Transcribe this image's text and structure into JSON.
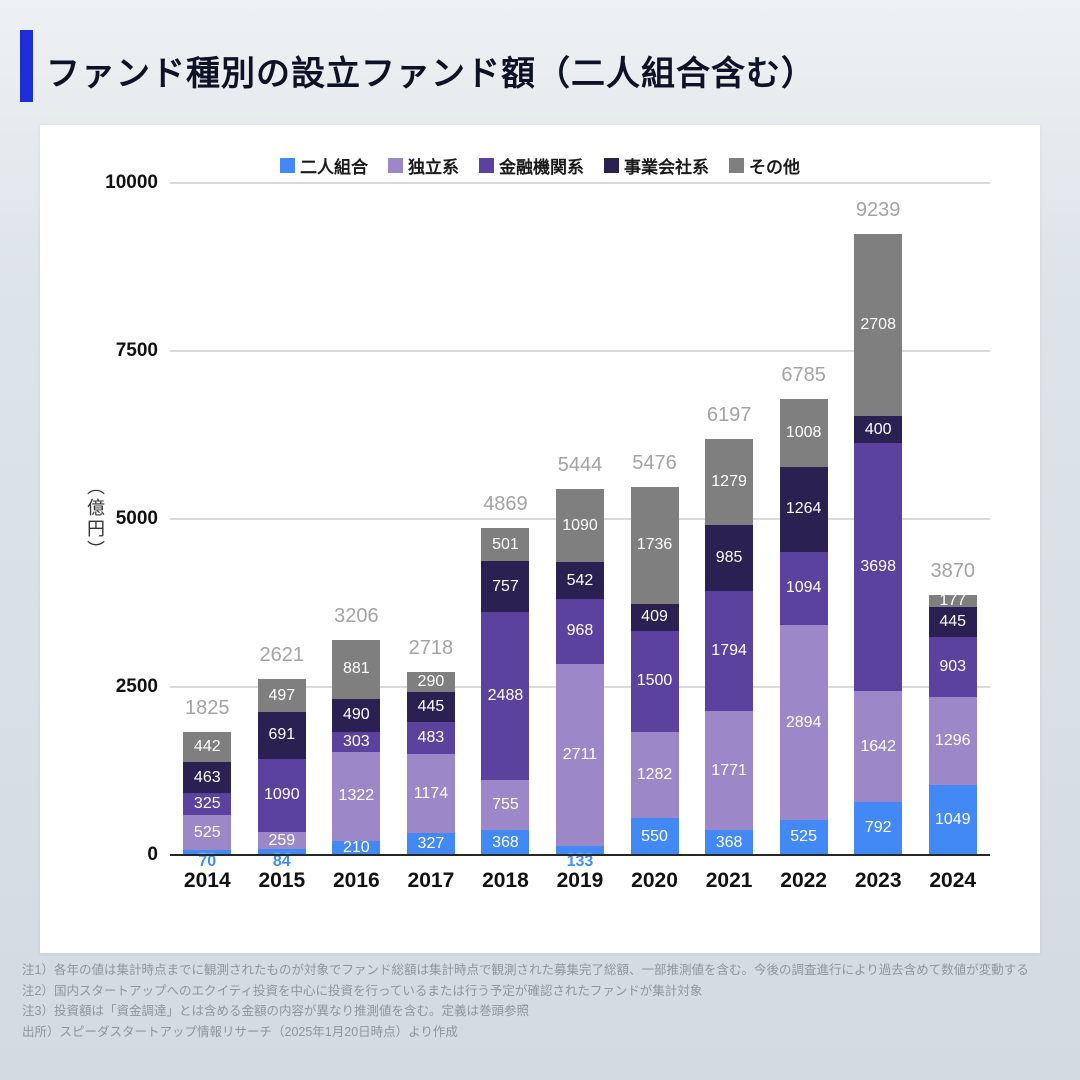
{
  "page": {
    "title": "ファンド種別の設立ファンド額（二人組合含む）"
  },
  "chart_data": {
    "type": "bar",
    "stacked": true,
    "title": "ファンド種別の設立ファンド額（二人組合含む）",
    "ylabel": "（億円）",
    "xlabel": "",
    "ylim": [
      0,
      10000
    ],
    "yticks": [
      0,
      2500,
      5000,
      7500,
      10000
    ],
    "grid": true,
    "legend_position": "top",
    "categories": [
      "2014",
      "2015",
      "2016",
      "2017",
      "2018",
      "2019",
      "2020",
      "2021",
      "2022",
      "2023",
      "2024"
    ],
    "series": [
      {
        "name": "二人組合",
        "color": "#4289f5",
        "values": [
          70,
          84,
          210,
          327,
          368,
          133,
          550,
          368,
          525,
          792,
          1049
        ]
      },
      {
        "name": "独立系",
        "color": "#9c87c9",
        "values": [
          525,
          259,
          1322,
          1174,
          755,
          2711,
          1282,
          1771,
          2894,
          1642,
          1296
        ]
      },
      {
        "name": "金融機関系",
        "color": "#5c429f",
        "values": [
          325,
          1090,
          303,
          483,
          2488,
          968,
          1500,
          1794,
          1094,
          3698,
          903
        ]
      },
      {
        "name": "事業会社系",
        "color": "#2a2152",
        "values": [
          463,
          691,
          490,
          445,
          757,
          542,
          409,
          985,
          1264,
          400,
          445
        ]
      },
      {
        "name": "その他",
        "color": "#7f7f7f",
        "values": [
          442,
          497,
          881,
          290,
          501,
          1090,
          1736,
          1279,
          1008,
          2708,
          177
        ]
      }
    ],
    "totals": [
      1825,
      2621,
      3206,
      2718,
      4869,
      5444,
      5476,
      6197,
      6785,
      9239,
      3870
    ]
  },
  "notes": [
    "注1）各年の値は集計時点までに観測されたものが対象でファンド総額は集計時点で観測された募集完了総額、一部推測値を含む。今後の調査進行により過去含めて数値が変動する",
    "注2）国内スタートアップへのエクイティ投資を中心に投資を行っているまたは行う予定が確認されたファンドが集計対象",
    "注3）投資額は「資金調達」とは含める金額の内容が異なり推測値を含む。定義は巻頭参照",
    "出所）スピーダスタートアップ情報リサーチ（2025年1月20日時点）より作成"
  ]
}
